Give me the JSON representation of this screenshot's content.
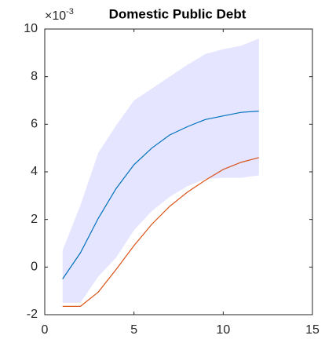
{
  "chart_data": {
    "type": "line",
    "title": "Domestic Public Debt",
    "y_multiplier": {
      "base": "×10",
      "exponent": "-3"
    },
    "x": [
      1,
      2,
      3,
      4,
      5,
      6,
      7,
      8,
      9,
      10,
      11,
      12
    ],
    "band": {
      "color": "#e5e5ff",
      "upper": [
        0.7,
        2.6,
        4.8,
        5.95,
        7.0,
        7.5,
        8.0,
        8.5,
        8.95,
        9.15,
        9.3,
        9.6
      ],
      "lower": [
        -1.5,
        -1.5,
        -0.4,
        0.4,
        1.55,
        2.35,
        2.95,
        3.4,
        3.7,
        3.75,
        3.75,
        3.85
      ]
    },
    "series": [
      {
        "color": "#0072bd",
        "values": [
          -0.5,
          0.6,
          2.05,
          3.3,
          4.3,
          5.0,
          5.55,
          5.9,
          6.2,
          6.35,
          6.5,
          6.55
        ]
      },
      {
        "color": "#d95319",
        "values": [
          -1.65,
          -1.65,
          -1.05,
          -0.1,
          0.9,
          1.8,
          2.55,
          3.15,
          3.65,
          4.1,
          4.4,
          4.6
        ]
      }
    ],
    "xlim": [
      0,
      15
    ],
    "xticks": [
      0,
      5,
      10,
      15
    ],
    "ylim": [
      -2,
      10
    ],
    "yticks": [
      -2,
      0,
      2,
      4,
      6,
      8,
      10
    ]
  }
}
